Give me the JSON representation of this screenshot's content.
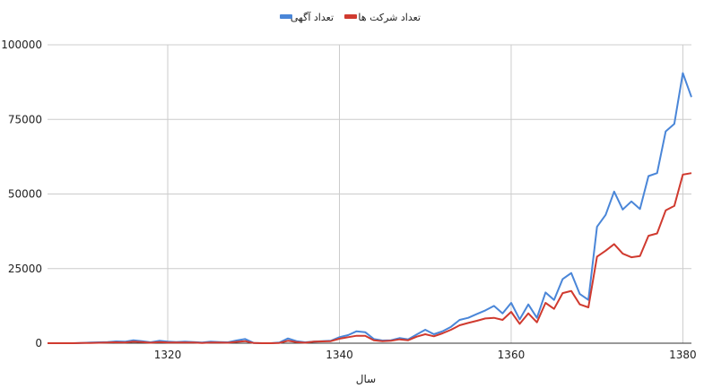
{
  "chart_data": {
    "type": "line",
    "title": "",
    "xlabel": "سال",
    "ylabel": "",
    "xlim": [
      1306,
      1381
    ],
    "ylim": [
      0,
      100000
    ],
    "x_ticks": [
      1320,
      1340,
      1360,
      1380
    ],
    "y_ticks": [
      0,
      25000,
      50000,
      75000,
      100000
    ],
    "x_tick_labels": [
      "1320",
      "1340",
      "1360",
      "1380"
    ],
    "y_tick_labels": [
      "0",
      "25000",
      "50000",
      "75000",
      "100000"
    ],
    "grid": true,
    "legend_position": "top-center",
    "x": [
      1306,
      1307,
      1308,
      1309,
      1310,
      1311,
      1312,
      1313,
      1314,
      1315,
      1316,
      1317,
      1318,
      1319,
      1320,
      1321,
      1322,
      1323,
      1324,
      1325,
      1326,
      1327,
      1328,
      1329,
      1330,
      1331,
      1332,
      1333,
      1334,
      1335,
      1336,
      1337,
      1338,
      1339,
      1340,
      1341,
      1342,
      1343,
      1344,
      1345,
      1346,
      1347,
      1348,
      1349,
      1350,
      1351,
      1352,
      1353,
      1354,
      1355,
      1356,
      1357,
      1358,
      1359,
      1360,
      1361,
      1362,
      1363,
      1364,
      1365,
      1366,
      1367,
      1368,
      1369,
      1370,
      1371,
      1372,
      1373,
      1374,
      1375,
      1376,
      1377,
      1378,
      1379,
      1380,
      1381
    ],
    "series": [
      {
        "name": "تعداد آگهی",
        "color": "#4a86d8",
        "values": [
          0,
          0,
          0,
          0,
          100,
          200,
          300,
          400,
          600,
          500,
          1000,
          700,
          300,
          800,
          500,
          400,
          500,
          400,
          200,
          500,
          400,
          300,
          900,
          1400,
          100,
          0,
          0,
          200,
          1600,
          700,
          300,
          500,
          700,
          800,
          2000,
          2700,
          4000,
          3700,
          1400,
          900,
          1000,
          1700,
          1300,
          2900,
          4500,
          3000,
          4000,
          5500,
          7800,
          8500,
          9800,
          11000,
          12500,
          10000,
          13500,
          8000,
          13000,
          8500,
          17000,
          14500,
          21500,
          23500,
          16500,
          14500,
          39000,
          43000,
          50800,
          44800,
          47500,
          45000,
          56000,
          57000,
          71000,
          73500,
          90500,
          82500
        ]
      },
      {
        "name": "تعداد شرکت ها",
        "color": "#d03a2f",
        "values": [
          0,
          0,
          0,
          0,
          50,
          100,
          150,
          200,
          300,
          250,
          500,
          350,
          150,
          400,
          250,
          200,
          250,
          200,
          100,
          250,
          200,
          150,
          450,
          700,
          50,
          0,
          0,
          100,
          800,
          350,
          150,
          500,
          600,
          700,
          1500,
          2000,
          2500,
          2500,
          1000,
          700,
          800,
          1300,
          1000,
          2200,
          3000,
          2300,
          3300,
          4500,
          6000,
          6800,
          7500,
          8300,
          8500,
          7800,
          10500,
          6500,
          10000,
          7000,
          13500,
          11500,
          16800,
          17500,
          13000,
          12000,
          29000,
          31000,
          33200,
          30000,
          28800,
          29200,
          36000,
          36800,
          44500,
          46000,
          56500,
          57000
        ]
      }
    ]
  }
}
